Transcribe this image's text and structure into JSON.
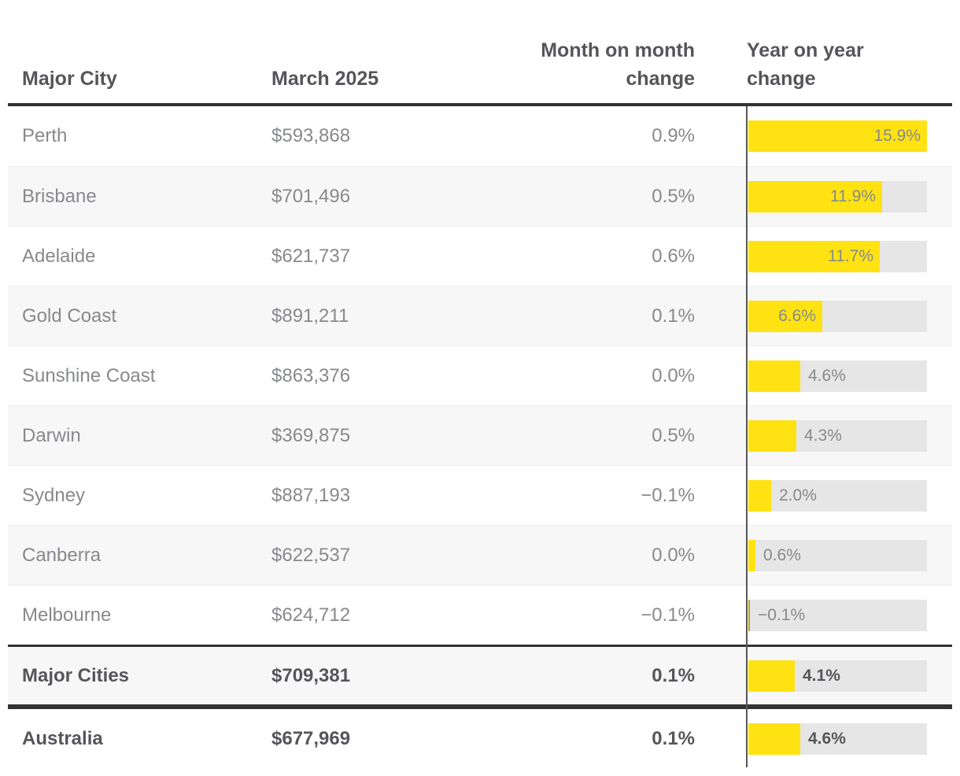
{
  "table": {
    "columns": [
      "Major City",
      "March 2025",
      "Month on month change",
      "Year on year change"
    ],
    "rows": [
      {
        "city": "Perth",
        "price": "$593,868",
        "mom": "0.9%",
        "yoy": 15.9,
        "yoy_label": "15.9%",
        "bold": false
      },
      {
        "city": "Brisbane",
        "price": "$701,496",
        "mom": "0.5%",
        "yoy": 11.9,
        "yoy_label": "11.9%",
        "bold": false
      },
      {
        "city": "Adelaide",
        "price": "$621,737",
        "mom": "0.6%",
        "yoy": 11.7,
        "yoy_label": "11.7%",
        "bold": false
      },
      {
        "city": "Gold Coast",
        "price": "$891,211",
        "mom": "0.1%",
        "yoy": 6.6,
        "yoy_label": "6.6%",
        "bold": false
      },
      {
        "city": "Sunshine Coast",
        "price": "$863,376",
        "mom": "0.0%",
        "yoy": 4.6,
        "yoy_label": "4.6%",
        "bold": false
      },
      {
        "city": "Darwin",
        "price": "$369,875",
        "mom": "0.5%",
        "yoy": 4.3,
        "yoy_label": "4.3%",
        "bold": false
      },
      {
        "city": "Sydney",
        "price": "$887,193",
        "mom": "−0.1%",
        "yoy": 2.0,
        "yoy_label": "2.0%",
        "bold": false
      },
      {
        "city": "Canberra",
        "price": "$622,537",
        "mom": "0.0%",
        "yoy": 0.6,
        "yoy_label": "0.6%",
        "bold": false
      },
      {
        "city": "Melbourne",
        "price": "$624,712",
        "mom": "−0.1%",
        "yoy": -0.1,
        "yoy_label": "−0.1%",
        "bold": false
      },
      {
        "city": "Major Cities",
        "price": "$709,381",
        "mom": "0.1%",
        "yoy": 4.1,
        "yoy_label": "4.1%",
        "bold": true
      },
      {
        "city": "Australia",
        "price": "$677,969",
        "mom": "0.1%",
        "yoy": 4.6,
        "yoy_label": "4.6%",
        "bold": true
      }
    ]
  },
  "colors": {
    "bar_fill": "#ffe212",
    "bar_fill_negative": "#b5a423",
    "bar_track": "#e6e6e6",
    "row_stripe": "#f7f7f7",
    "border_dark": "#333333",
    "text_header": "#55565a",
    "text_body": "#87898c"
  },
  "chart_data": {
    "type": "table",
    "title": "",
    "columns": [
      "Major City",
      "March 2025",
      "Month on month change",
      "Year on year change"
    ],
    "rows": [
      [
        "Perth",
        "$593,868",
        0.9,
        15.9
      ],
      [
        "Brisbane",
        "$701,496",
        0.5,
        11.9
      ],
      [
        "Adelaide",
        "$621,737",
        0.6,
        11.7
      ],
      [
        "Gold Coast",
        "$891,211",
        0.1,
        6.6
      ],
      [
        "Sunshine Coast",
        "$863,376",
        0.0,
        4.6
      ],
      [
        "Darwin",
        "$369,875",
        0.5,
        4.3
      ],
      [
        "Sydney",
        "$887,193",
        -0.1,
        2.0
      ],
      [
        "Canberra",
        "$622,537",
        0.0,
        0.6
      ],
      [
        "Melbourne",
        "$624,712",
        -0.1,
        -0.1
      ],
      [
        "Major Cities",
        "$709,381",
        0.1,
        4.1
      ],
      [
        "Australia",
        "$677,969",
        0.1,
        4.6
      ]
    ],
    "embedded_bar": {
      "type": "bar",
      "column": "Year on year change",
      "categories": [
        "Perth",
        "Brisbane",
        "Adelaide",
        "Gold Coast",
        "Sunshine Coast",
        "Darwin",
        "Sydney",
        "Canberra",
        "Melbourne",
        "Major Cities",
        "Australia"
      ],
      "values": [
        15.9,
        11.9,
        11.7,
        6.6,
        4.6,
        4.3,
        2.0,
        0.6,
        -0.1,
        4.1,
        4.6
      ],
      "xlim": [
        0,
        15.9
      ],
      "orientation": "horizontal",
      "color": "#ffe212"
    }
  }
}
